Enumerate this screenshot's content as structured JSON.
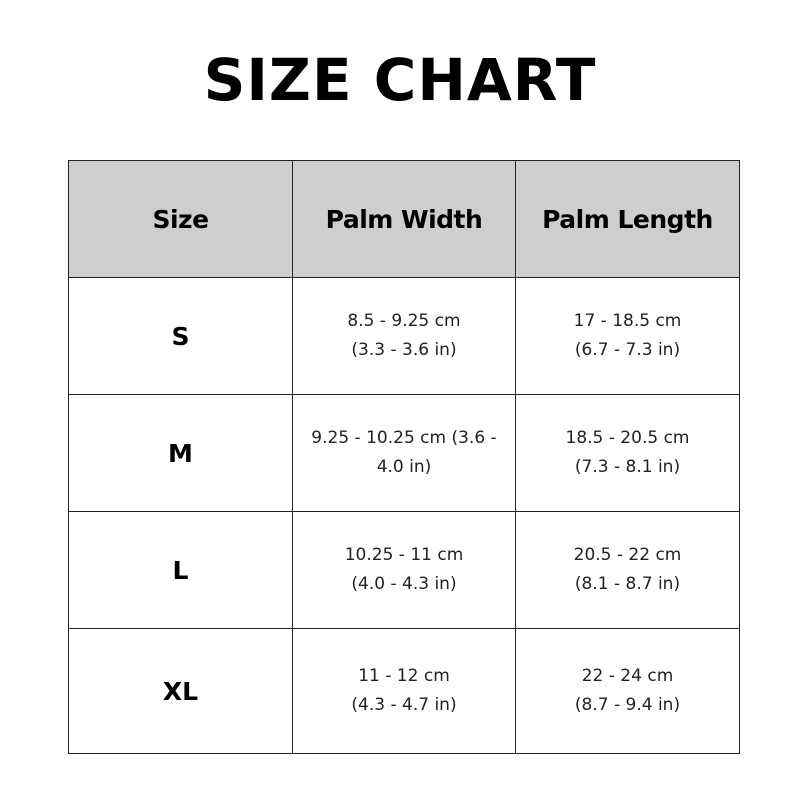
{
  "title": "SIZE CHART",
  "colors": {
    "header_bg": "#cecece",
    "border": "#222222",
    "text": "#000000"
  },
  "table": {
    "headers": [
      "Size",
      "Palm Width",
      "Palm Length"
    ],
    "rows": [
      {
        "size": "S",
        "palm_width": [
          "8.5 - 9.25 cm",
          "(3.3 - 3.6 in)"
        ],
        "palm_length": [
          "17 - 18.5 cm",
          "(6.7 - 7.3 in)"
        ]
      },
      {
        "size": "M",
        "palm_width": [
          "9.25 - 10.25 cm (3.6 -",
          "4.0 in)"
        ],
        "palm_length": [
          "18.5 - 20.5 cm",
          "(7.3 - 8.1 in)"
        ]
      },
      {
        "size": "L",
        "palm_width": [
          "10.25 - 11 cm",
          "(4.0 - 4.3 in)"
        ],
        "palm_length": [
          "20.5 - 22 cm",
          "(8.1 - 8.7 in)"
        ]
      },
      {
        "size": "XL",
        "palm_width": [
          "11 - 12 cm",
          "(4.3 - 4.7 in)"
        ],
        "palm_length": [
          "22 - 24 cm",
          "(8.7 - 9.4 in)"
        ]
      }
    ]
  }
}
